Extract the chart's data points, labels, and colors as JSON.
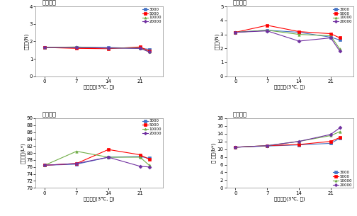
{
  "title": "균상재배",
  "series_labels": [
    "3000",
    "5000",
    "10000",
    "20000"
  ],
  "series_colors": [
    "#4472c4",
    "#ff0000",
    "#70ad47",
    "#7030a0"
  ],
  "series_markers": [
    "s",
    "s",
    "^",
    "D"
  ],
  "plot1": {
    "ylabel": "갓경도(N)",
    "ylim": [
      0,
      4
    ],
    "yticks": [
      0,
      1,
      2,
      3,
      4
    ],
    "xlabel": "저장기간(3℃, 일)",
    "x": [
      0,
      7,
      14,
      21,
      23
    ],
    "data": [
      [
        1.65,
        1.65,
        1.65,
        1.6,
        1.55
      ],
      [
        1.65,
        1.6,
        1.58,
        1.68,
        1.45
      ],
      [
        1.65,
        1.68,
        1.62,
        1.62,
        1.4
      ],
      [
        1.65,
        1.65,
        1.62,
        1.6,
        1.4
      ]
    ]
  },
  "plot2": {
    "ylabel": "대경도(N)",
    "ylim": [
      0,
      5
    ],
    "yticks": [
      0,
      1,
      2,
      3,
      4,
      5
    ],
    "xlabel": "저장기간(3℃, 일)",
    "x": [
      0,
      7,
      14,
      21,
      23
    ],
    "data": [
      [
        3.15,
        3.3,
        3.15,
        2.8,
        2.6
      ],
      [
        3.15,
        3.65,
        3.2,
        3.05,
        2.75
      ],
      [
        3.15,
        3.3,
        3.0,
        2.9,
        1.95
      ],
      [
        3.15,
        3.25,
        2.52,
        2.75,
        1.8
      ]
    ]
  },
  "plot3": {
    "ylabel": "줄기색도(L*)",
    "ylim": [
      70,
      90
    ],
    "yticks": [
      70,
      72,
      74,
      76,
      78,
      80,
      82,
      84,
      86,
      88,
      90
    ],
    "xlabel": "저장기간(3℃, 일)",
    "x": [
      0,
      7,
      14,
      21,
      23
    ],
    "data": [
      [
        76.5,
        76.8,
        78.8,
        79.0,
        78.5
      ],
      [
        76.5,
        77.0,
        81.0,
        79.5,
        78.2
      ],
      [
        76.5,
        80.5,
        78.8,
        78.8,
        76.5
      ],
      [
        76.5,
        77.0,
        78.8,
        76.2,
        76.0
      ]
    ]
  },
  "plot4": {
    "ylabel": "대 색도(b*)",
    "ylim": [
      0,
      18
    ],
    "yticks": [
      0,
      2,
      4,
      6,
      8,
      10,
      12,
      14,
      16,
      18
    ],
    "xlabel": "지정기간(3℃, 일)",
    "x": [
      0,
      7,
      14,
      21,
      23
    ],
    "data": [
      [
        10.5,
        10.8,
        11.1,
        11.5,
        12.8
      ],
      [
        10.5,
        10.9,
        11.2,
        12.0,
        13.0
      ],
      [
        10.5,
        10.9,
        12.0,
        13.5,
        14.5
      ],
      [
        10.5,
        10.9,
        12.0,
        13.8,
        15.5
      ]
    ]
  }
}
